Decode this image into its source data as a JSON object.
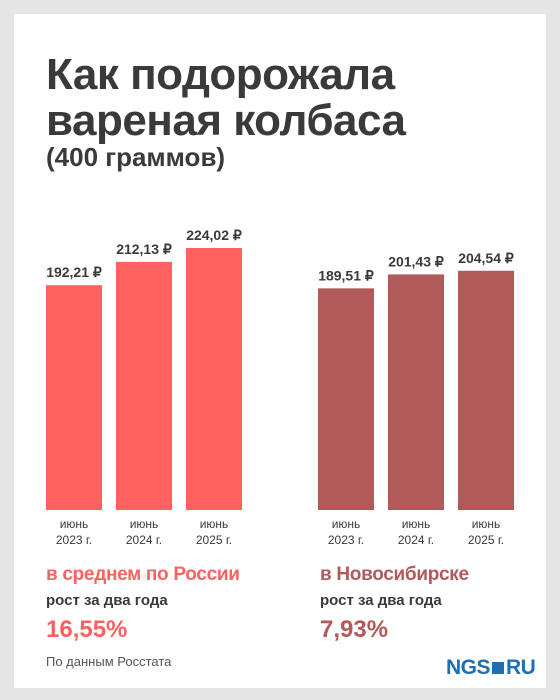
{
  "title_line1": "Как подорожала",
  "title_line2": "вареная колбаса",
  "subtitle": "(400 граммов)",
  "colors": {
    "russia": "#ff6161",
    "novosibirsk": "#b15a5a",
    "text": "#3a3a3a",
    "logo": "#1f6fb4"
  },
  "chart_data": [
    {
      "type": "bar",
      "categories": [
        [
          "июнь",
          "2023 г."
        ],
        [
          "июнь",
          "2024 г."
        ],
        [
          "июнь",
          "2025 г."
        ]
      ],
      "values": [
        192.21,
        212.13,
        224.02
      ],
      "value_labels": [
        "192,21 ₽",
        "212,13 ₽",
        "224,02 ₽"
      ],
      "ylim": [
        0,
        224.02
      ],
      "grid": false,
      "color": "#ff6161"
    },
    {
      "type": "bar",
      "categories": [
        [
          "июнь",
          "2023 г."
        ],
        [
          "июнь",
          "2024 г."
        ],
        [
          "июнь",
          "2025 г."
        ]
      ],
      "values": [
        189.51,
        201.43,
        204.54
      ],
      "value_labels": [
        "189,51 ₽",
        "201,43 ₽",
        "204,54 ₽"
      ],
      "ylim": [
        0,
        224.02
      ],
      "grid": false,
      "color": "#b15a5a"
    }
  ],
  "summary_russia": {
    "place": "в среднем по России",
    "note": "рост за два года",
    "pct": "16,55%"
  },
  "summary_nsk": {
    "place": "в Новосибирске",
    "note": "рост за два года",
    "pct": "7,93%"
  },
  "source": "По данным Росстата",
  "logo": {
    "left": "NGS",
    "right": "RU"
  }
}
